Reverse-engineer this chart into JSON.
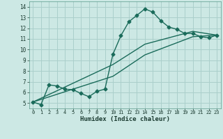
{
  "title": "",
  "xlabel": "Humidex (Indice chaleur)",
  "bg_color": "#cce8e4",
  "grid_color": "#aacfcb",
  "line_color": "#1a6b5a",
  "xlim": [
    -0.5,
    23.5
  ],
  "ylim": [
    4.5,
    14.5
  ],
  "xticks": [
    0,
    1,
    2,
    3,
    4,
    5,
    6,
    7,
    8,
    9,
    10,
    11,
    12,
    13,
    14,
    15,
    16,
    17,
    18,
    19,
    20,
    21,
    22,
    23
  ],
  "yticks": [
    5,
    6,
    7,
    8,
    9,
    10,
    11,
    12,
    13,
    14
  ],
  "line1_x": [
    0,
    1,
    2,
    3,
    4,
    5,
    6,
    7,
    8,
    9,
    10,
    11,
    12,
    13,
    14,
    15,
    16,
    17,
    18,
    19,
    20,
    21,
    22,
    23
  ],
  "line1_y": [
    5.1,
    4.85,
    6.7,
    6.6,
    6.3,
    6.25,
    5.9,
    5.6,
    6.1,
    6.3,
    9.55,
    11.3,
    12.6,
    13.2,
    13.8,
    13.5,
    12.7,
    12.1,
    11.9,
    11.5,
    11.5,
    11.2,
    11.1,
    11.35
  ],
  "line2_x": [
    0,
    10,
    14,
    20,
    23
  ],
  "line2_y": [
    5.1,
    8.6,
    10.5,
    11.7,
    11.35
  ],
  "line3_x": [
    0,
    10,
    14,
    20,
    23
  ],
  "line3_y": [
    5.1,
    7.5,
    9.5,
    11.2,
    11.35
  ],
  "marker_size": 2.5,
  "line_width": 1.0
}
